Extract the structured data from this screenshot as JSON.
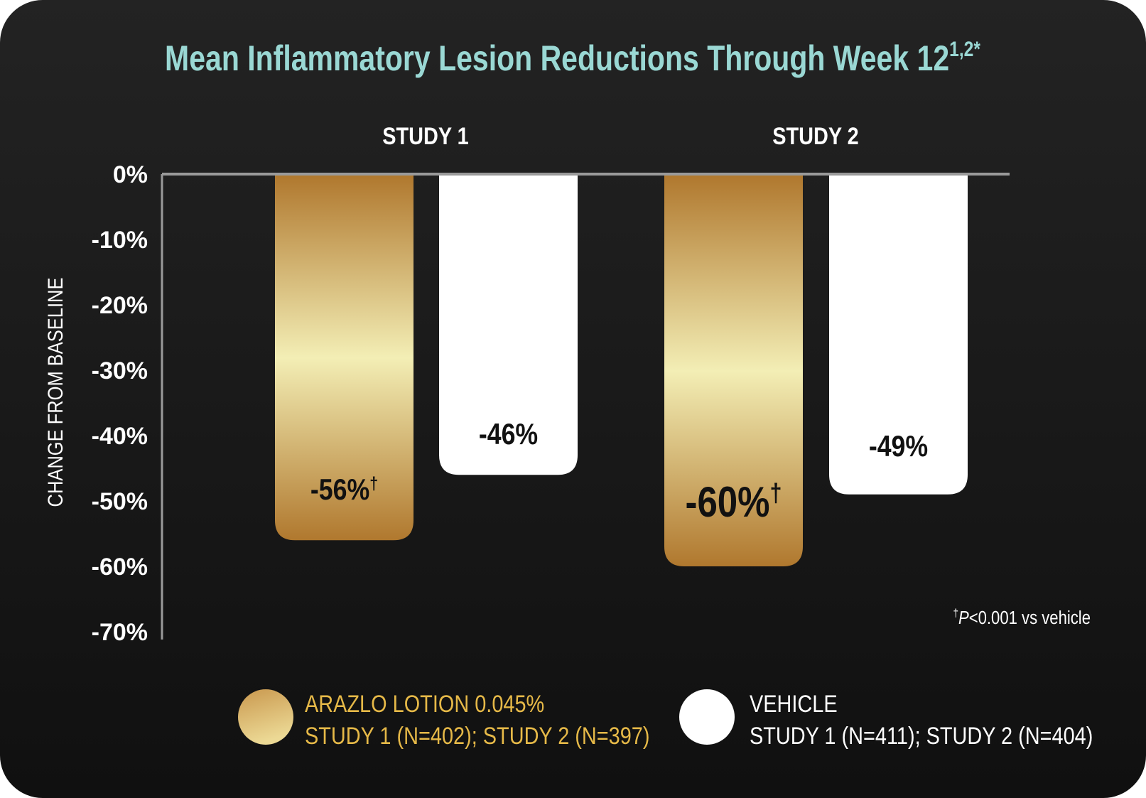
{
  "chart_data": {
    "type": "bar",
    "title": "Mean Inflammatory Lesion Reductions Through Week 12",
    "title_superscript": "1,2*",
    "categories": [
      "STUDY 1",
      "STUDY 2"
    ],
    "ylabel": "CHANGE FROM BASELINE",
    "ylim": [
      -70,
      0
    ],
    "yticks": [
      0,
      -10,
      -20,
      -30,
      -40,
      -50,
      -60,
      -70
    ],
    "ytick_labels": [
      "0%",
      "-10%",
      "-20%",
      "-30%",
      "-40%",
      "-50%",
      "-60%",
      "-70%"
    ],
    "grid": false,
    "legend_placement": "bottom",
    "series": [
      {
        "name": "ARAZLO LOTION 0.045%",
        "detail": "STUDY 1 (N=402); STUDY 2 (N=397)",
        "values": [
          -56,
          -60
        ],
        "labels": [
          "-56%",
          "-60%"
        ],
        "label_marks": [
          "†",
          "†"
        ],
        "color": "#c99a4a"
      },
      {
        "name": "VEHICLE",
        "detail": "STUDY 1 (N=411); STUDY 2 (N=404)",
        "values": [
          -46,
          -49
        ],
        "labels": [
          "-46%",
          "-49%"
        ],
        "label_marks": [
          "",
          ""
        ],
        "color": "#ffffff"
      }
    ],
    "footnote_mark": "†",
    "footnote_p": "P",
    "footnote_text": "<0.001 vs vehicle"
  },
  "colors": {
    "title": "#9ad8d4",
    "gold_dark": "#b0782e",
    "gold_light": "#f3eeb5",
    "legend_gold": "#e6b948",
    "background": "#1a1a1a"
  }
}
